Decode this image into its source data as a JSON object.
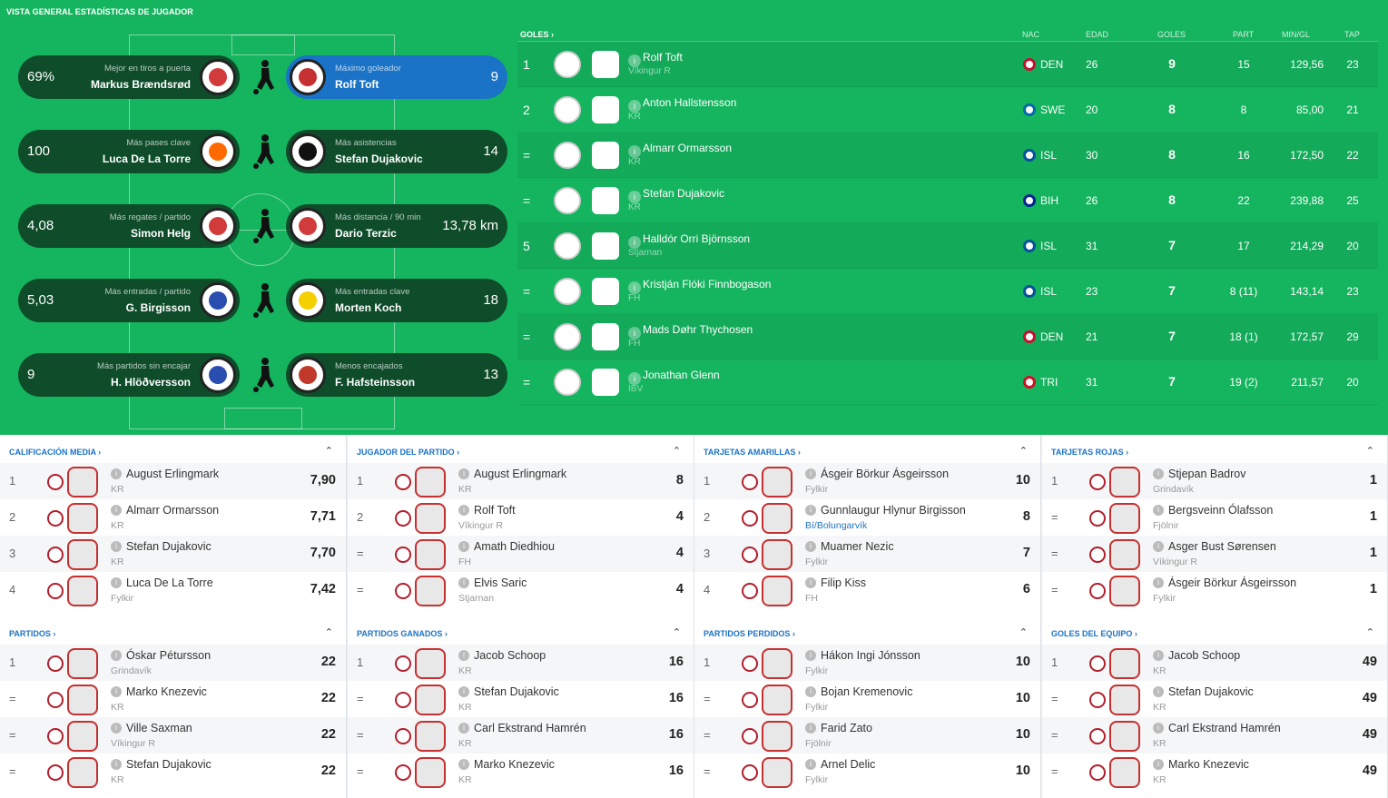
{
  "page_title": "VISTA GENERAL ESTADÍSTICAS DE JUGADOR",
  "highlights": [
    {
      "left": {
        "val": "69%",
        "label": "Mejor en tiros a puerta",
        "name": "Markus Brændsrød"
      },
      "right": {
        "val": "9",
        "label": "Máximo goleador",
        "name": "Rolf Toft",
        "highlight": true
      }
    },
    {
      "left": {
        "val": "100",
        "label": "Más pases clave",
        "name": "Luca De La Torre"
      },
      "right": {
        "val": "14",
        "label": "Más asistencias",
        "name": "Stefan Dujakovic"
      }
    },
    {
      "left": {
        "val": "4,08",
        "label": "Más regates / partido",
        "name": "Simon Helg"
      },
      "right": {
        "val": "13,78 km",
        "label": "Más distancia / 90 min",
        "name": "Dario Terzic"
      }
    },
    {
      "left": {
        "val": "5,03",
        "label": "Más entradas / partido",
        "name": "G. Birgisson"
      },
      "right": {
        "val": "18",
        "label": "Más entradas clave",
        "name": "Morten Koch"
      }
    },
    {
      "left": {
        "val": "9",
        "label": "Más partidos sin encajar",
        "name": "H. Hlöðversson"
      },
      "right": {
        "val": "13",
        "label": "Menos encajados",
        "name": "F. Hafsteinsson"
      }
    }
  ],
  "scorers": {
    "header": {
      "title": "GOLES",
      "nat": "NAC",
      "age": "EDAD",
      "goals": "GOLES",
      "apps": "PART",
      "mpg": "MIN/GL",
      "sh": "TAP"
    },
    "rows": [
      {
        "pos": "1",
        "name": "Rolf Toft",
        "club": "Víkingur R",
        "nat": "DEN",
        "age": "26",
        "goals": "9",
        "apps": "15",
        "mpg": "129,56",
        "sh": "23"
      },
      {
        "pos": "2",
        "name": "Anton Hallstensson",
        "club": "KR",
        "nat": "SWE",
        "age": "20",
        "goals": "8",
        "apps": "8",
        "mpg": "85,00",
        "sh": "21"
      },
      {
        "pos": "=",
        "name": "Almarr Ormarsson",
        "club": "KR",
        "nat": "ISL",
        "age": "30",
        "goals": "8",
        "apps": "16",
        "mpg": "172,50",
        "sh": "22"
      },
      {
        "pos": "=",
        "name": "Stefan Dujakovic",
        "club": "KR",
        "nat": "BIH",
        "age": "26",
        "goals": "8",
        "apps": "22",
        "mpg": "239,88",
        "sh": "25"
      },
      {
        "pos": "5",
        "name": "Halldór Orri Björnsson",
        "club": "Stjarnan",
        "nat": "ISL",
        "age": "31",
        "goals": "7",
        "apps": "17",
        "mpg": "214,29",
        "sh": "20"
      },
      {
        "pos": "=",
        "name": "Kristján Flóki Finnbogason",
        "club": "FH",
        "nat": "ISL",
        "age": "23",
        "goals": "7",
        "apps": "8 (11)",
        "mpg": "143,14",
        "sh": "23"
      },
      {
        "pos": "=",
        "name": "Mads Døhr Thychosen",
        "club": "FH",
        "nat": "DEN",
        "age": "21",
        "goals": "7",
        "apps": "18 (1)",
        "mpg": "172,57",
        "sh": "29"
      },
      {
        "pos": "=",
        "name": "Jonathan Glenn",
        "club": "ÍBV",
        "nat": "TRI",
        "age": "31",
        "goals": "7",
        "apps": "19 (2)",
        "mpg": "211,57",
        "sh": "20"
      }
    ]
  },
  "panels": [
    {
      "title": "CALIFICACIÓN MEDIA ›",
      "rows": [
        {
          "pos": "1",
          "name": "August Erlingmark",
          "club": "KR",
          "val": "7,90"
        },
        {
          "pos": "2",
          "name": "Almarr Ormarsson",
          "club": "KR",
          "val": "7,71"
        },
        {
          "pos": "3",
          "name": "Stefan Dujakovic",
          "club": "KR",
          "val": "7,70"
        },
        {
          "pos": "4",
          "name": "Luca De La Torre",
          "club": "Fylkir",
          "val": "7,42"
        }
      ]
    },
    {
      "title": "JUGADOR DEL PARTIDO ›",
      "rows": [
        {
          "pos": "1",
          "name": "August Erlingmark",
          "club": "KR",
          "val": "8"
        },
        {
          "pos": "2",
          "name": "Rolf Toft",
          "club": "Víkingur R",
          "val": "4"
        },
        {
          "pos": "=",
          "name": "Amath Diedhiou",
          "club": "FH",
          "val": "4"
        },
        {
          "pos": "=",
          "name": "Elvis Saric",
          "club": "Stjarnan",
          "val": "4"
        }
      ]
    },
    {
      "title": "TARJETAS AMARILLAS ›",
      "rows": [
        {
          "pos": "1",
          "name": "Ásgeir Börkur Ásgeirsson",
          "club": "Fylkir",
          "val": "10"
        },
        {
          "pos": "2",
          "name": "Gunnlaugur Hlynur Birgisson",
          "club": "Bí/Bolungarvík",
          "val": "8",
          "link": true
        },
        {
          "pos": "3",
          "name": "Muamer Nezic",
          "club": "Fylkir",
          "val": "7"
        },
        {
          "pos": "4",
          "name": "Filip Kiss",
          "club": "FH",
          "val": "6"
        }
      ]
    },
    {
      "title": "TARJETAS ROJAS ›",
      "rows": [
        {
          "pos": "1",
          "name": "Stjepan Badrov",
          "club": "Grindavík",
          "val": "1"
        },
        {
          "pos": "=",
          "name": "Bergsveinn Ólafsson",
          "club": "Fjölnir",
          "val": "1"
        },
        {
          "pos": "=",
          "name": "Asger Bust Sørensen",
          "club": "Víkingur R",
          "val": "1"
        },
        {
          "pos": "=",
          "name": "Ásgeir Börkur Ásgeirsson",
          "club": "Fylkir",
          "val": "1"
        }
      ]
    },
    {
      "title": "PARTIDOS ›",
      "rows": [
        {
          "pos": "1",
          "name": "Óskar Pétursson",
          "club": "Grindavík",
          "val": "22"
        },
        {
          "pos": "=",
          "name": "Marko Knezevic",
          "club": "KR",
          "val": "22"
        },
        {
          "pos": "=",
          "name": "Ville Saxman",
          "club": "Víkingur R",
          "val": "22"
        },
        {
          "pos": "=",
          "name": "Stefan Dujakovic",
          "club": "KR",
          "val": "22"
        }
      ]
    },
    {
      "title": "PARTIDOS GANADOS ›",
      "rows": [
        {
          "pos": "1",
          "name": "Jacob Schoop",
          "club": "KR",
          "val": "16"
        },
        {
          "pos": "=",
          "name": "Stefan Dujakovic",
          "club": "KR",
          "val": "16"
        },
        {
          "pos": "=",
          "name": "Carl Ekstrand Hamrén",
          "club": "KR",
          "val": "16"
        },
        {
          "pos": "=",
          "name": "Marko Knezevic",
          "club": "KR",
          "val": "16"
        }
      ]
    },
    {
      "title": "PARTIDOS PERDIDOS ›",
      "rows": [
        {
          "pos": "1",
          "name": "Hákon Ingi Jónsson",
          "club": "Fylkir",
          "val": "10"
        },
        {
          "pos": "=",
          "name": "Bojan Kremenovic",
          "club": "Fylkir",
          "val": "10"
        },
        {
          "pos": "=",
          "name": "Farid Zato",
          "club": "Fjölnir",
          "val": "10"
        },
        {
          "pos": "=",
          "name": "Arnel Delic",
          "club": "Fylkir",
          "val": "10"
        }
      ]
    },
    {
      "title": "GOLES DEL EQUIPO ›",
      "rows": [
        {
          "pos": "1",
          "name": "Jacob Schoop",
          "club": "KR",
          "val": "49"
        },
        {
          "pos": "=",
          "name": "Stefan Dujakovic",
          "club": "KR",
          "val": "49"
        },
        {
          "pos": "=",
          "name": "Carl Ekstrand Hamrén",
          "club": "KR",
          "val": "49"
        },
        {
          "pos": "=",
          "name": "Marko Knezevic",
          "club": "KR",
          "val": "49"
        }
      ]
    }
  ],
  "colors": {
    "pitch": "#15b45f",
    "pill": "#0e4c2a",
    "highlight": "#1a73c6",
    "link": "#1a73c6"
  }
}
